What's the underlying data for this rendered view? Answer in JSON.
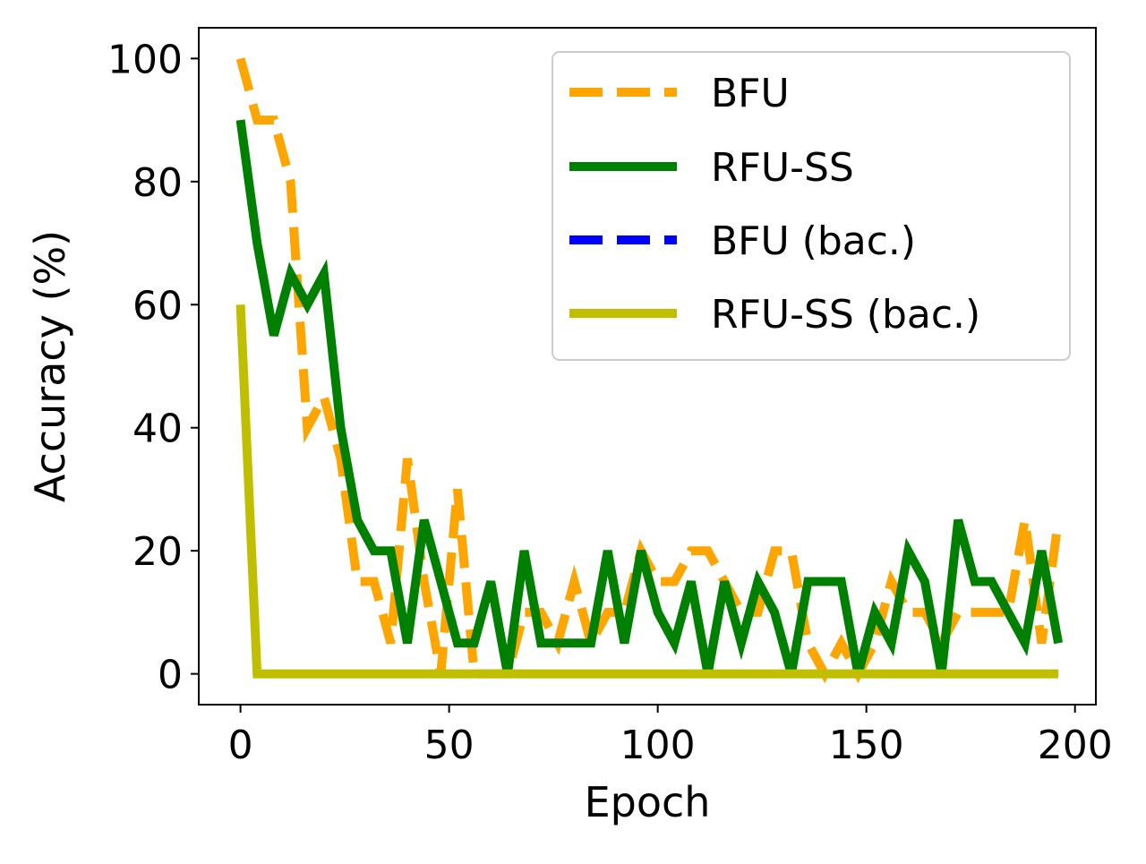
{
  "chart_data": {
    "type": "line",
    "title": "",
    "xlabel": "Epoch",
    "ylabel": "Accuracy (%)",
    "xlim": [
      -10,
      205
    ],
    "ylim": [
      -5,
      105
    ],
    "xticks": [
      0,
      50,
      100,
      150,
      200
    ],
    "yticks": [
      0,
      20,
      40,
      60,
      80,
      100
    ],
    "grid": false,
    "legend_position": "top-right",
    "x": [
      0,
      4,
      8,
      12,
      16,
      20,
      24,
      28,
      32,
      36,
      40,
      44,
      48,
      52,
      56,
      60,
      64,
      68,
      72,
      76,
      80,
      84,
      88,
      92,
      96,
      100,
      104,
      108,
      112,
      116,
      120,
      124,
      128,
      132,
      136,
      140,
      144,
      148,
      152,
      156,
      160,
      164,
      168,
      172,
      176,
      180,
      184,
      188,
      192,
      196
    ],
    "series": [
      {
        "name": "BFU",
        "color": "#ffa500",
        "style": "dashed",
        "values": [
          100,
          90,
          90,
          80,
          40,
          45,
          35,
          15,
          15,
          5,
          35,
          15,
          0,
          30,
          0,
          0,
          0,
          10,
          10,
          5,
          15,
          5,
          10,
          10,
          20,
          15,
          15,
          20,
          20,
          15,
          10,
          10,
          20,
          20,
          5,
          0,
          5,
          0,
          5,
          15,
          10,
          10,
          5,
          10,
          10,
          10,
          10,
          25,
          5,
          25
        ]
      },
      {
        "name": "RFU-SS",
        "color": "#008000",
        "style": "solid",
        "values": [
          90,
          70,
          55,
          65,
          60,
          65,
          40,
          25,
          20,
          20,
          5,
          25,
          15,
          5,
          5,
          15,
          0,
          20,
          5,
          5,
          5,
          5,
          20,
          5,
          20,
          10,
          5,
          15,
          0,
          15,
          5,
          15,
          10,
          0,
          15,
          15,
          15,
          0,
          10,
          5,
          20,
          15,
          0,
          25,
          15,
          15,
          10,
          5,
          20,
          5
        ]
      },
      {
        "name": "BFU (bac.)",
        "color": "#0000ff",
        "style": "dashed",
        "values": [
          50,
          0,
          0,
          0,
          0,
          0,
          0,
          0,
          0,
          0,
          0,
          0,
          0,
          0,
          0,
          0,
          0,
          0,
          0,
          0,
          0,
          0,
          0,
          0,
          0,
          0,
          0,
          0,
          0,
          0,
          0,
          0,
          0,
          0,
          0,
          0,
          0,
          0,
          0,
          0,
          0,
          0,
          0,
          0,
          0,
          0,
          0,
          0,
          0,
          0
        ]
      },
      {
        "name": "RFU-SS (bac.)",
        "color": "#bfbf00",
        "style": "solid",
        "values": [
          60,
          0,
          0,
          0,
          0,
          0,
          0,
          0,
          0,
          0,
          0,
          0,
          0,
          0,
          0,
          0,
          0,
          0,
          0,
          0,
          0,
          0,
          0,
          0,
          0,
          0,
          0,
          0,
          0,
          0,
          0,
          0,
          0,
          0,
          0,
          0,
          0,
          0,
          0,
          0,
          0,
          0,
          0,
          0,
          0,
          0,
          0,
          0,
          0,
          0
        ]
      }
    ]
  }
}
